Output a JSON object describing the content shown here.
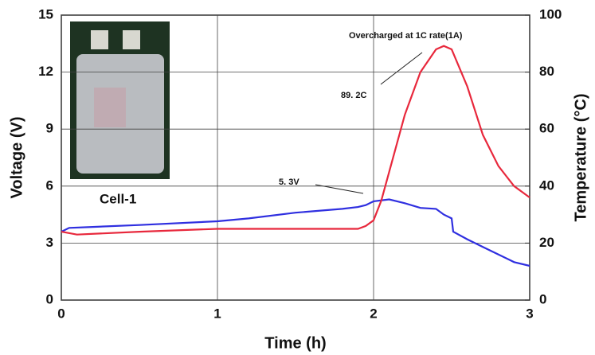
{
  "chart_data": {
    "type": "line",
    "xlabel": "Time (h)",
    "ylabel": "Voltage (V)",
    "y2label": "Temperature (°C)",
    "xlim": [
      0,
      3
    ],
    "xticks": [
      0,
      1,
      2,
      3
    ],
    "ylim": [
      0,
      15
    ],
    "yticks": [
      0,
      3,
      6,
      9,
      12,
      15
    ],
    "y2lim": [
      0,
      100
    ],
    "y2ticks": [
      0,
      20,
      40,
      60,
      80,
      100
    ],
    "grid": true,
    "annotations": [
      "Overcharged at 1C rate(1A)",
      "89. 2C",
      "5. 3V",
      "Cell-1"
    ],
    "series": [
      {
        "color": "#2f2fe0",
        "axis": "y",
        "x": [
          0,
          0.05,
          0.2,
          0.5,
          1,
          1.2,
          1.5,
          1.8,
          1.9,
          1.95,
          2.0,
          2.1,
          2.2,
          2.3,
          2.4,
          2.45,
          2.5,
          2.51,
          2.6,
          2.7,
          2.8,
          2.9,
          3.0
        ],
        "values": [
          3.6,
          3.8,
          3.85,
          3.95,
          4.15,
          4.3,
          4.6,
          4.8,
          4.9,
          5.0,
          5.2,
          5.3,
          5.1,
          4.85,
          4.8,
          4.5,
          4.3,
          3.6,
          3.2,
          2.8,
          2.4,
          2.0,
          1.8
        ]
      },
      {
        "color": "#e8283c",
        "axis": "y2",
        "x": [
          0,
          0.1,
          0.5,
          1.0,
          1.5,
          1.9,
          1.95,
          2.0,
          2.05,
          2.1,
          2.2,
          2.3,
          2.4,
          2.45,
          2.5,
          2.6,
          2.7,
          2.8,
          2.9,
          3.0
        ],
        "values": [
          24,
          23,
          24,
          25,
          25,
          25,
          26,
          28,
          35,
          45,
          65,
          80,
          88,
          89.2,
          88,
          75,
          58,
          47,
          40,
          36
        ]
      }
    ]
  }
}
